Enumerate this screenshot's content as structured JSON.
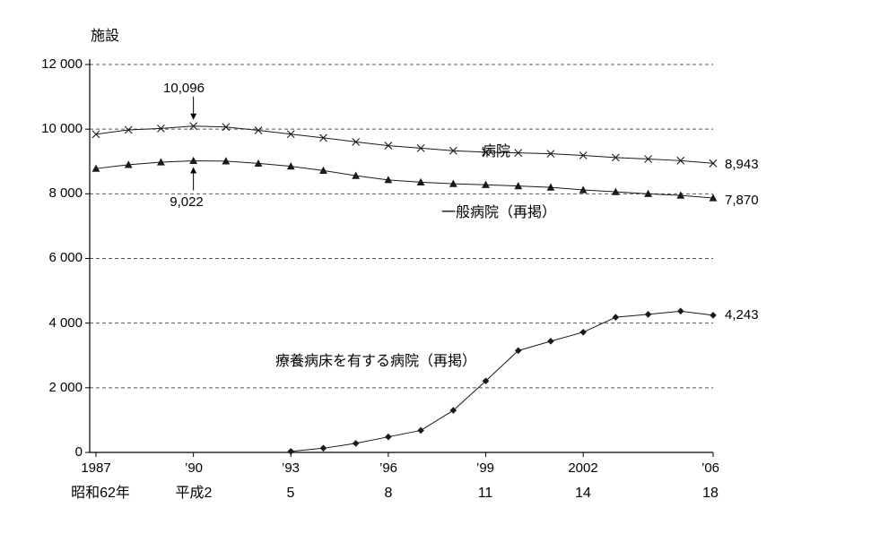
{
  "chart_data": {
    "type": "line",
    "title": "",
    "ylabel": "施設",
    "ylim": [
      0,
      12000
    ],
    "xlim_years": [
      1987,
      2006
    ],
    "grid": "dashed-horizontal",
    "ytick_values": [
      12000,
      10000,
      8000,
      6000,
      4000,
      2000,
      0
    ],
    "ytick_labels": [
      "12 000",
      "10 000",
      "8 000",
      "6 000",
      "4 000",
      "2 000",
      "0"
    ],
    "xticks": [
      {
        "year": 1987,
        "west": "1987",
        "era": "昭和62年"
      },
      {
        "year": 1990,
        "west": "’90",
        "era": "平成2"
      },
      {
        "year": 1993,
        "west": "’93",
        "era": "5"
      },
      {
        "year": 1996,
        "west": "’96",
        "era": "8"
      },
      {
        "year": 1999,
        "west": "’99",
        "era": "11"
      },
      {
        "year": 2002,
        "west": "2002",
        "era": "14"
      },
      {
        "year": 2006,
        "west": "’06",
        "era": "18"
      }
    ],
    "series": [
      {
        "name": "病院",
        "marker": "x",
        "years": [
          1987,
          1988,
          1989,
          1990,
          1991,
          1992,
          1993,
          1994,
          1995,
          1996,
          1997,
          1998,
          1999,
          2000,
          2001,
          2002,
          2003,
          2004,
          2005,
          2006
        ],
        "values": [
          9841,
          9978,
          10023,
          10096,
          10066,
          9963,
          9844,
          9731,
          9606,
          9490,
          9413,
          9333,
          9286,
          9266,
          9239,
          9187,
          9122,
          9077,
          9026,
          8943
        ]
      },
      {
        "name": "一般病院（再掲）",
        "marker": "triangle",
        "years": [
          1987,
          1988,
          1989,
          1990,
          1991,
          1992,
          1993,
          1994,
          1995,
          1996,
          1997,
          1998,
          1999,
          2000,
          2001,
          2002,
          2003,
          2004,
          2005,
          2006
        ],
        "values": [
          8780,
          8900,
          8980,
          9022,
          9010,
          8940,
          8850,
          8720,
          8560,
          8430,
          8360,
          8310,
          8280,
          8240,
          8200,
          8120,
          8060,
          8000,
          7950,
          7870
        ]
      },
      {
        "name": "療養病床を有する病院（再掲）",
        "marker": "diamond",
        "years": [
          1993,
          1994,
          1995,
          1996,
          1997,
          1998,
          1999,
          2000,
          2001,
          2002,
          2003,
          2004,
          2005,
          2006
        ],
        "values": [
          30,
          130,
          280,
          480,
          680,
          1300,
          2210,
          3150,
          3440,
          3720,
          4180,
          4270,
          4370,
          4243
        ]
      }
    ],
    "annotations": [
      {
        "label": "10,096",
        "year": 1990,
        "value": 10096,
        "direction": "down"
      },
      {
        "label": "9,022",
        "year": 1990,
        "value": 9022,
        "direction": "up"
      }
    ],
    "end_labels": [
      "8,943",
      "7,870",
      "4,243"
    ],
    "line_color": "#1a1a1a",
    "grid_color": "#555555"
  }
}
